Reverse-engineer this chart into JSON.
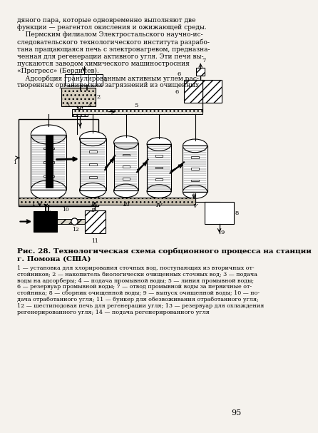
{
  "bg_color": "#f5f2ed",
  "line_color": "#000000",
  "text_color": "#000000",
  "page_num": "95",
  "header_lines": [
    "дяного пара, которые одновременно выполняют две",
    "функции — реагентол окисления и ожижающей среды.",
    "    Пермским филиалом Электростальского научно-ис-",
    "следовательского технологического института разрабо-",
    "тана пращающаяся печь с электронагревом, предназна-",
    "ченная для регенерации активного угля. Эти печи вы-",
    "пускаются заводом химического машиностросния",
    "«Прогресс» (Бердичев).",
    "    Адсорбция гранулированным активным углем рас-",
    "творенных органических загрязнений из очищенных"
  ],
  "caption_title": "Рис. 28. Технологическая схема сорбционного процесса на станции",
  "caption_title2": "г. Помона (США)",
  "caption_body": "1 — установка для хлорирования сточных вод, поступающих из вторичных от-\nстойников; 2 — накопитель биологически очищенных сточных вод; 3 — подача\nводы на адсорберы; 4 — подача промывной воды; 5 — линия промывной воды;\n6 — резервуар промывной воды; 7 — отвод промывной воды за первичные от-\nстойника; 8 — сборник очищенной воды; 9 — выпуск очищенной воды; 10 — по-\nдача отработанного угля; 11 — бункер для обезвоживания отработанного угля;\n12 — шестиподовая печь для регенерации угля; 13 — резервуар для охлаждения\nрегенерированного угля; 14 — подача регенерированного угля"
}
